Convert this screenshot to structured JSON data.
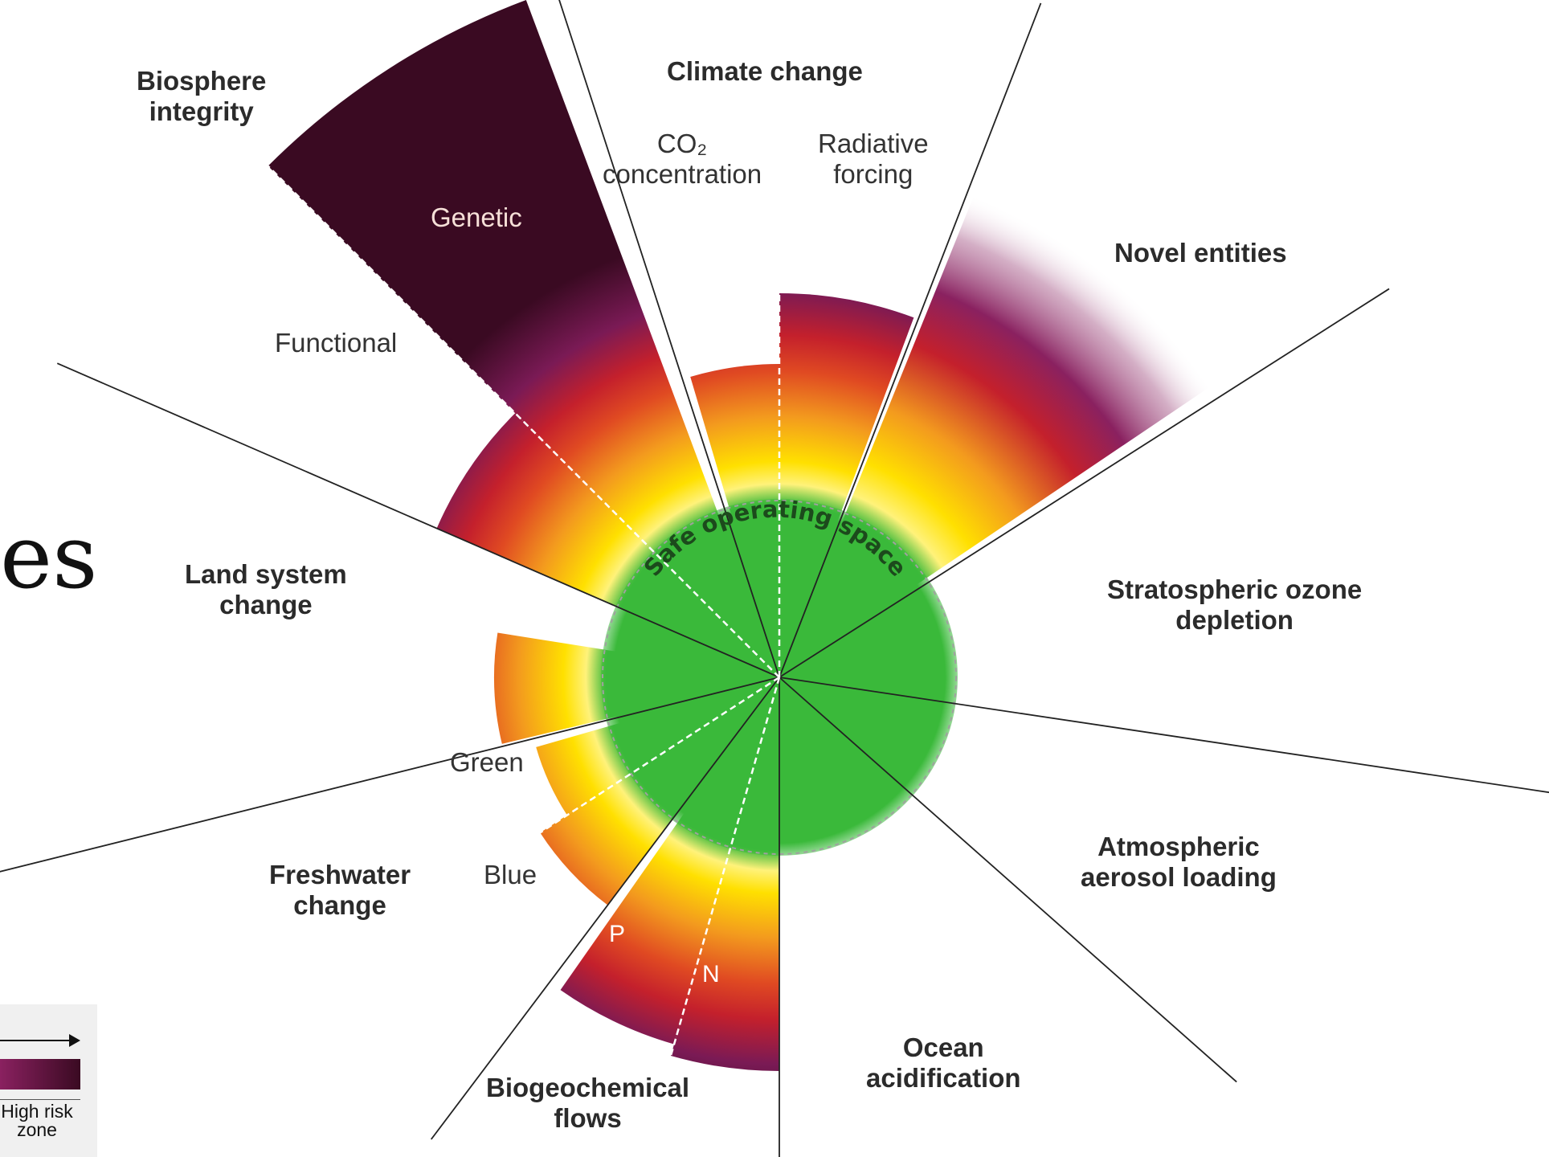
{
  "diagram": {
    "center_label": "Safe operating space",
    "boundaries": {
      "climate_change": "Climate change",
      "co2": "CO₂\nconcentration",
      "radiative_forcing": "Radiative\nforcing",
      "novel_entities": "Novel entities",
      "ozone": "Stratospheric ozone\ndepletion",
      "aerosol": "Atmospheric\naerosol loading",
      "ocean": "Ocean\nacidification",
      "biogeochemical": "Biogeochemical\nflows",
      "phosphorus": "P",
      "nitrogen": "N",
      "freshwater": "Freshwater\nchange",
      "blue": "Blue",
      "green": "Green",
      "land": "Land system\nchange",
      "functional": "Functional",
      "genetic": "Genetic",
      "biosphere": "Biosphere\nintegrity"
    },
    "edge_fragment": "es",
    "legend": {
      "high_risk": "High risk\nzone"
    },
    "colors": {
      "safe": "#3ab93a",
      "yellow": "#ffe000",
      "orange": "#f39a1e",
      "red": "#c4202c",
      "purple": "#7a1a55",
      "dark": "#3a0a22"
    }
  }
}
